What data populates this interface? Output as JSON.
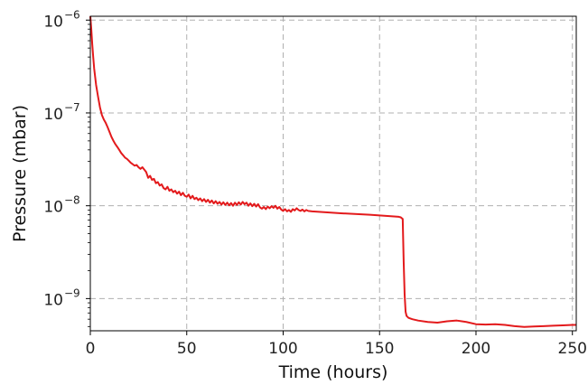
{
  "chart_data": {
    "type": "line",
    "title": "",
    "xlabel": "Time (hours)",
    "ylabel": "Pressure (mbar)",
    "x_scale": "linear",
    "y_scale": "log",
    "xlim": [
      0,
      252
    ],
    "ylim": [
      4.5e-10,
      1.1e-06
    ],
    "grid": true,
    "grid_style": "dashed",
    "x_ticks": [
      {
        "value": 0,
        "label": "0"
      },
      {
        "value": 50,
        "label": "50"
      },
      {
        "value": 100,
        "label": "100"
      },
      {
        "value": 150,
        "label": "150"
      },
      {
        "value": 200,
        "label": "200"
      },
      {
        "value": 250,
        "label": "250"
      }
    ],
    "y_ticks": [
      {
        "value": 1e-06,
        "base": "10",
        "exponent": "−6"
      },
      {
        "value": 1e-07,
        "base": "10",
        "exponent": "−7"
      },
      {
        "value": 1e-08,
        "base": "10",
        "exponent": "−8"
      },
      {
        "value": 1e-09,
        "base": "10",
        "exponent": "−9"
      }
    ],
    "series": [
      {
        "color": "#e31a1c",
        "points": [
          [
            0,
            1.1e-06
          ],
          [
            0.5,
            8e-07
          ],
          [
            1,
            5.5e-07
          ],
          [
            1.5,
            4e-07
          ],
          [
            2,
            3e-07
          ],
          [
            3,
            2e-07
          ],
          [
            4,
            1.5e-07
          ],
          [
            5,
            1.15e-07
          ],
          [
            6,
            9.5e-08
          ],
          [
            7,
            8.5e-08
          ],
          [
            8,
            7.8e-08
          ],
          [
            9,
            7e-08
          ],
          [
            10,
            6.2e-08
          ],
          [
            11,
            5.5e-08
          ],
          [
            12,
            5e-08
          ],
          [
            13,
            4.6e-08
          ],
          [
            14,
            4.3e-08
          ],
          [
            15,
            4e-08
          ],
          [
            16,
            3.7e-08
          ],
          [
            17,
            3.5e-08
          ],
          [
            18,
            3.3e-08
          ],
          [
            19,
            3.2e-08
          ],
          [
            20,
            3.05e-08
          ],
          [
            21,
            2.9e-08
          ],
          [
            22,
            2.8e-08
          ],
          [
            23,
            2.7e-08
          ],
          [
            24,
            2.75e-08
          ],
          [
            25,
            2.6e-08
          ],
          [
            26,
            2.5e-08
          ],
          [
            27,
            2.6e-08
          ],
          [
            28,
            2.45e-08
          ],
          [
            29,
            2.3e-08
          ],
          [
            30,
            2e-08
          ],
          [
            31,
            2.1e-08
          ],
          [
            32,
            1.9e-08
          ],
          [
            33,
            1.95e-08
          ],
          [
            34,
            1.75e-08
          ],
          [
            35,
            1.8e-08
          ],
          [
            36,
            1.65e-08
          ],
          [
            37,
            1.7e-08
          ],
          [
            38,
            1.55e-08
          ],
          [
            39,
            1.5e-08
          ],
          [
            40,
            1.6e-08
          ],
          [
            41,
            1.45e-08
          ],
          [
            42,
            1.5e-08
          ],
          [
            43,
            1.4e-08
          ],
          [
            44,
            1.45e-08
          ],
          [
            45,
            1.35e-08
          ],
          [
            46,
            1.42e-08
          ],
          [
            47,
            1.3e-08
          ],
          [
            48,
            1.38e-08
          ],
          [
            49,
            1.28e-08
          ],
          [
            50,
            1.25e-08
          ],
          [
            51,
            1.32e-08
          ],
          [
            52,
            1.2e-08
          ],
          [
            53,
            1.28e-08
          ],
          [
            54,
            1.18e-08
          ],
          [
            55,
            1.22e-08
          ],
          [
            56,
            1.15e-08
          ],
          [
            57,
            1.2e-08
          ],
          [
            58,
            1.12e-08
          ],
          [
            59,
            1.18e-08
          ],
          [
            60,
            1.1e-08
          ],
          [
            61,
            1.16e-08
          ],
          [
            62,
            1.08e-08
          ],
          [
            63,
            1.14e-08
          ],
          [
            64,
            1.06e-08
          ],
          [
            65,
            1.12e-08
          ],
          [
            66,
            1.05e-08
          ],
          [
            67,
            1.1e-08
          ],
          [
            68,
            1.03e-08
          ],
          [
            69,
            1.09e-08
          ],
          [
            70,
            1.02e-08
          ],
          [
            71,
            1.08e-08
          ],
          [
            72,
            1.01e-08
          ],
          [
            73,
            1.07e-08
          ],
          [
            74,
            1e-08
          ],
          [
            75,
            1.08e-08
          ],
          [
            76,
            1.02e-08
          ],
          [
            77,
            1.09e-08
          ],
          [
            78,
            1.03e-08
          ],
          [
            79,
            1.1e-08
          ],
          [
            80,
            1.04e-08
          ],
          [
            81,
            1.08e-08
          ],
          [
            82,
            1e-08
          ],
          [
            83,
            1.06e-08
          ],
          [
            84,
            9.9e-09
          ],
          [
            85,
            1.05e-08
          ],
          [
            86,
            9.8e-09
          ],
          [
            87,
            1.04e-08
          ],
          [
            88,
            9.6e-09
          ],
          [
            89,
            9.3e-09
          ],
          [
            90,
            9.7e-09
          ],
          [
            91,
            9.2e-09
          ],
          [
            92,
            9.8e-09
          ],
          [
            93,
            9.4e-09
          ],
          [
            94,
            9.9e-09
          ],
          [
            95,
            9.5e-09
          ],
          [
            96,
            1e-08
          ],
          [
            97,
            9.3e-09
          ],
          [
            98,
            9.7e-09
          ],
          [
            99,
            9.1e-09
          ],
          [
            100,
            8.8e-09
          ],
          [
            101,
            9.2e-09
          ],
          [
            102,
            8.7e-09
          ],
          [
            103,
            9e-09
          ],
          [
            104,
            8.6e-09
          ],
          [
            105,
            9.2e-09
          ],
          [
            106,
            8.9e-09
          ],
          [
            107,
            9.4e-09
          ],
          [
            108,
            9e-09
          ],
          [
            109,
            8.8e-09
          ],
          [
            110,
            9.1e-09
          ],
          [
            111,
            8.7e-09
          ],
          [
            112,
            9e-09
          ],
          [
            113,
            8.8e-09
          ],
          [
            115,
            8.7e-09
          ],
          [
            130,
            8.3e-09
          ],
          [
            145,
            8e-09
          ],
          [
            160,
            7.6e-09
          ],
          [
            161,
            7.5e-09
          ],
          [
            162,
            7.2e-09
          ],
          [
            162.5,
            2.5e-09
          ],
          [
            163,
            1.1e-09
          ],
          [
            163.5,
            7.2e-10
          ],
          [
            164,
            6.5e-10
          ],
          [
            165,
            6.2e-10
          ],
          [
            167,
            6e-10
          ],
          [
            170,
            5.8e-10
          ],
          [
            175,
            5.6e-10
          ],
          [
            180,
            5.5e-10
          ],
          [
            185,
            5.7e-10
          ],
          [
            190,
            5.8e-10
          ],
          [
            195,
            5.6e-10
          ],
          [
            200,
            5.3e-10
          ],
          [
            205,
            5.25e-10
          ],
          [
            210,
            5.3e-10
          ],
          [
            215,
            5.2e-10
          ],
          [
            220,
            5.05e-10
          ],
          [
            225,
            4.95e-10
          ],
          [
            230,
            5e-10
          ],
          [
            235,
            5.05e-10
          ],
          [
            240,
            5.1e-10
          ],
          [
            245,
            5.15e-10
          ],
          [
            250,
            5.2e-10
          ],
          [
            252,
            5.2e-10
          ]
        ]
      }
    ]
  }
}
